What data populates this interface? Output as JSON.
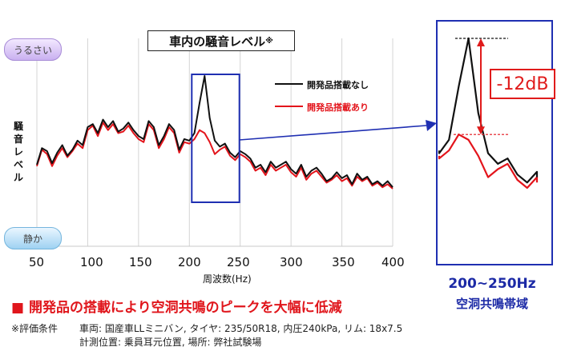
{
  "title": "車内の騒音レベル",
  "title_note": "※",
  "ylabel": "騒音レベル",
  "loud_label": "うるさい",
  "quiet_label": "静か",
  "xlabel": "周波数(Hz)",
  "reduction_label": "-12dB",
  "band_label_freq": "200~250Hz",
  "band_label_name": "空洞共鳴帯域",
  "headline": "■ 開発品の搭載により空洞共鳴のピークを大幅に低減",
  "conditions": {
    "note_label": "※評価条件",
    "line1": "車両: 国産車LLミニバン, タイヤ: 235/50R18, 内圧240kPa, リム: 18x7.5",
    "line2": "計測位置: 乗員耳元位置, 場所: 弊社試験場"
  },
  "colors": {
    "without": "#111111",
    "with": "#e3141b",
    "highlight": "#1f2fb2",
    "accent": "#e01b1b"
  },
  "chart_data": {
    "type": "line",
    "title": "車内の騒音レベル※",
    "xlabel": "周波数(Hz)",
    "ylabel": "騒音レベル",
    "xlim": [
      50,
      400
    ],
    "x_ticks": [
      "50",
      "100",
      "150",
      "200",
      "250",
      "300",
      "350",
      "400"
    ],
    "y_scale": "relative level, 0 = 静か, 100 = うるさい (no numeric ticks shown)",
    "ylim": [
      0,
      100
    ],
    "grid": "vertical gridlines",
    "legend_position": "top-right",
    "highlight_range_x": [
      200,
      250
    ],
    "x": [
      50,
      55,
      60,
      65,
      70,
      75,
      80,
      85,
      90,
      95,
      100,
      105,
      110,
      115,
      120,
      125,
      130,
      135,
      140,
      145,
      150,
      155,
      160,
      165,
      170,
      175,
      180,
      185,
      190,
      195,
      200,
      205,
      210,
      215,
      220,
      225,
      230,
      235,
      240,
      245,
      250,
      255,
      260,
      265,
      270,
      275,
      280,
      285,
      290,
      295,
      300,
      305,
      310,
      315,
      320,
      325,
      330,
      335,
      340,
      345,
      350,
      355,
      360,
      365,
      370,
      375,
      380,
      385,
      390,
      395,
      400
    ],
    "series": [
      {
        "name": "開発品搭載なし",
        "values": [
          33,
          44,
          42,
          34,
          41,
          46,
          39,
          43,
          49,
          46,
          58,
          60,
          54,
          63,
          58,
          62,
          55,
          57,
          61,
          56,
          52,
          50,
          62,
          58,
          46,
          52,
          60,
          56,
          43,
          50,
          49,
          54,
          74,
          92,
          64,
          49,
          45,
          47,
          41,
          38,
          42,
          40,
          37,
          31,
          33,
          28,
          35,
          31,
          33,
          35,
          30,
          27,
          33,
          25,
          29,
          31,
          27,
          22,
          24,
          28,
          24,
          26,
          20,
          27,
          23,
          25,
          20,
          22,
          19,
          22,
          18
        ]
      },
      {
        "name": "開発品搭載あり",
        "values": [
          32,
          43,
          40,
          32,
          39,
          44,
          38,
          42,
          47,
          44,
          56,
          59,
          52,
          61,
          56,
          60,
          54,
          55,
          59,
          54,
          50,
          48,
          60,
          56,
          44,
          50,
          58,
          54,
          41,
          48,
          47,
          50,
          56,
          54,
          48,
          40,
          43,
          45,
          39,
          36,
          40,
          38,
          35,
          29,
          31,
          26,
          33,
          29,
          31,
          33,
          28,
          25,
          31,
          23,
          27,
          29,
          25,
          21,
          23,
          26,
          22,
          24,
          19,
          25,
          22,
          24,
          19,
          21,
          18,
          20,
          17
        ]
      }
    ],
    "inset": {
      "description_x_range": [
        200,
        250
      ],
      "peak_difference_label": "-12dB",
      "band_label": "200~250Hz 空洞共鳴帯域"
    }
  }
}
